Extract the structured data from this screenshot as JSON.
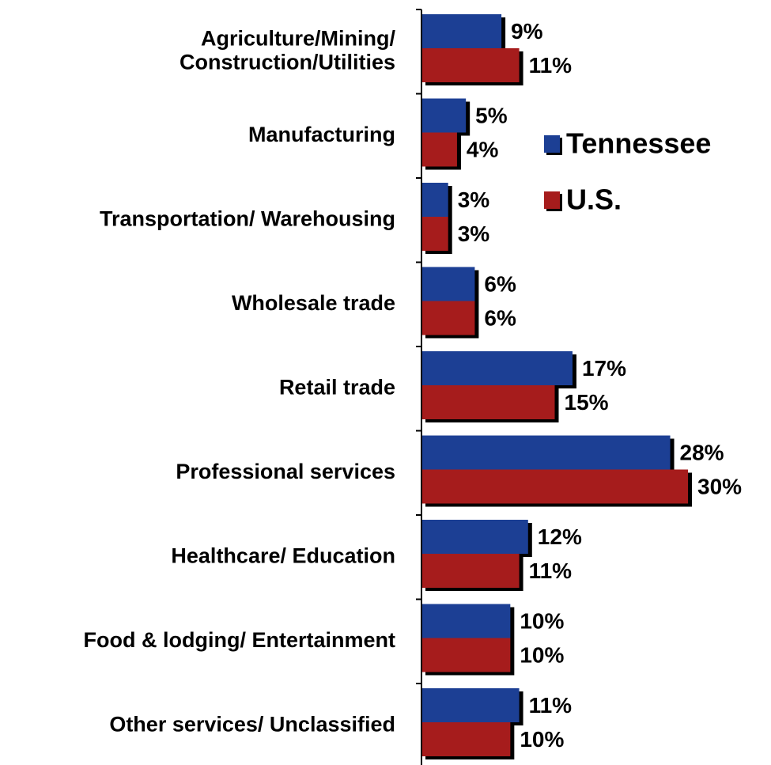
{
  "chart_data": {
    "type": "hbar",
    "categories": [
      "Agriculture/Mining/\nConstruction/Utilities",
      "Manufacturing",
      "Transportation/ Warehousing",
      "Wholesale trade",
      "Retail trade",
      "Professional services",
      "Healthcare/ Education",
      "Food & lodging/ Entertainment",
      "Other services/ Unclassified"
    ],
    "series": [
      {
        "name": "Tennessee",
        "color": "#1c3f94",
        "values": [
          9,
          5,
          3,
          6,
          17,
          28,
          12,
          10,
          11
        ],
        "value_labels": [
          "9%",
          "5%",
          "3%",
          "6%",
          "17%",
          "28%",
          "12%",
          "10%",
          "11%"
        ]
      },
      {
        "name": "U.S.",
        "color": "#a61c1c",
        "values": [
          11,
          4,
          3,
          6,
          15,
          30,
          11,
          10,
          10
        ],
        "value_labels": [
          "11%",
          "4%",
          "3%",
          "6%",
          "15%",
          "30%",
          "11%",
          "10%",
          "10%"
        ]
      }
    ],
    "xlim": [
      0,
      30
    ],
    "legend": "upper right"
  }
}
